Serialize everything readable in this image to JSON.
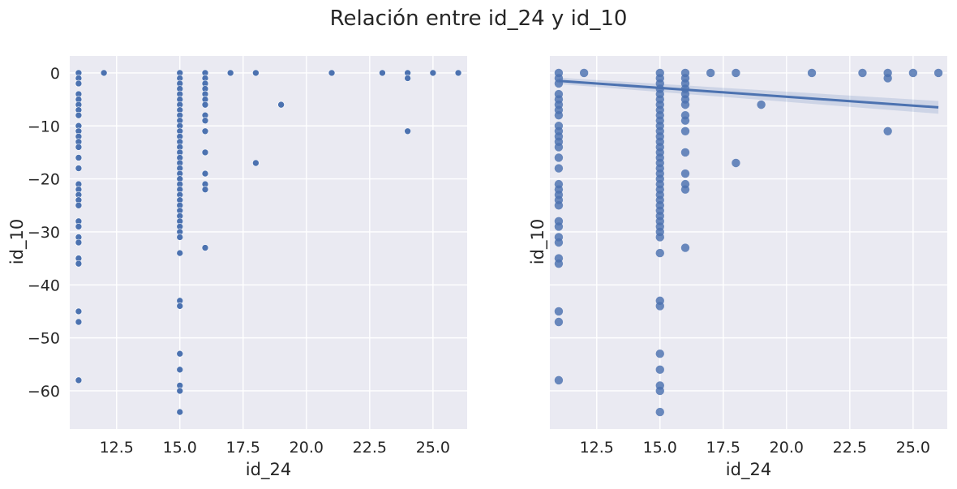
{
  "figure": {
    "title": "Relación entre id_24 y id_10"
  },
  "colors": {
    "background": "#eaeaf2",
    "grid": "#ffffff",
    "points": "#4c72b0",
    "regression_band": "#4c72b0"
  },
  "chart_data": [
    {
      "type": "scatter",
      "title": "",
      "xlabel": "id_24",
      "ylabel": "id_10",
      "xlim": [
        10.65,
        26.35
      ],
      "ylim": [
        -67.2,
        3.2
      ],
      "xticks": [
        12.5,
        15.0,
        17.5,
        20.0,
        22.5,
        25.0
      ],
      "yticks": [
        0,
        -10,
        -20,
        -30,
        -40,
        -50,
        -60
      ],
      "xtick_labels": [
        "12.5",
        "15.0",
        "17.5",
        "20.0",
        "22.5",
        "25.0"
      ],
      "ytick_labels": [
        "0",
        "−10",
        "−20",
        "−30",
        "−40",
        "−50",
        "−60"
      ],
      "grid": true,
      "series": [
        {
          "points": [
            [
              11,
              0
            ],
            [
              11,
              -1
            ],
            [
              11,
              -2
            ],
            [
              11,
              -4
            ],
            [
              11,
              -5
            ],
            [
              11,
              -6
            ],
            [
              11,
              -7
            ],
            [
              11,
              -8
            ],
            [
              11,
              -10
            ],
            [
              11,
              -11
            ],
            [
              11,
              -12
            ],
            [
              11,
              -13
            ],
            [
              11,
              -14
            ],
            [
              11,
              -16
            ],
            [
              11,
              -18
            ],
            [
              11,
              -21
            ],
            [
              11,
              -22
            ],
            [
              11,
              -23
            ],
            [
              11,
              -24
            ],
            [
              11,
              -25
            ],
            [
              11,
              -28
            ],
            [
              11,
              -29
            ],
            [
              11,
              -31
            ],
            [
              11,
              -32
            ],
            [
              11,
              -35
            ],
            [
              11,
              -36
            ],
            [
              11,
              -45
            ],
            [
              11,
              -47
            ],
            [
              11,
              -58
            ],
            [
              12,
              0
            ],
            [
              15,
              0
            ],
            [
              15,
              -1
            ],
            [
              15,
              -2
            ],
            [
              15,
              -3
            ],
            [
              15,
              -4
            ],
            [
              15,
              -5
            ],
            [
              15,
              -6
            ],
            [
              15,
              -7
            ],
            [
              15,
              -8
            ],
            [
              15,
              -9
            ],
            [
              15,
              -10
            ],
            [
              15,
              -11
            ],
            [
              15,
              -12
            ],
            [
              15,
              -13
            ],
            [
              15,
              -14
            ],
            [
              15,
              -15
            ],
            [
              15,
              -16
            ],
            [
              15,
              -17
            ],
            [
              15,
              -18
            ],
            [
              15,
              -19
            ],
            [
              15,
              -20
            ],
            [
              15,
              -21
            ],
            [
              15,
              -22
            ],
            [
              15,
              -23
            ],
            [
              15,
              -24
            ],
            [
              15,
              -25
            ],
            [
              15,
              -26
            ],
            [
              15,
              -27
            ],
            [
              15,
              -28
            ],
            [
              15,
              -29
            ],
            [
              15,
              -30
            ],
            [
              15,
              -31
            ],
            [
              15,
              -34
            ],
            [
              15,
              -43
            ],
            [
              15,
              -44
            ],
            [
              15,
              -53
            ],
            [
              15,
              -56
            ],
            [
              15,
              -59
            ],
            [
              15,
              -60
            ],
            [
              15,
              -64
            ],
            [
              16,
              0
            ],
            [
              16,
              -1
            ],
            [
              16,
              -2
            ],
            [
              16,
              -3
            ],
            [
              16,
              -4
            ],
            [
              16,
              -5
            ],
            [
              16,
              -6
            ],
            [
              16,
              -8
            ],
            [
              16,
              -9
            ],
            [
              16,
              -11
            ],
            [
              16,
              -15
            ],
            [
              16,
              -19
            ],
            [
              16,
              -21
            ],
            [
              16,
              -22
            ],
            [
              16,
              -33
            ],
            [
              17,
              0
            ],
            [
              18,
              0
            ],
            [
              18,
              -17
            ],
            [
              19,
              -6
            ],
            [
              21,
              0
            ],
            [
              23,
              0
            ],
            [
              24,
              0
            ],
            [
              24,
              -1
            ],
            [
              24,
              -11
            ],
            [
              25,
              0
            ],
            [
              26,
              0
            ]
          ]
        }
      ]
    },
    {
      "type": "scatter",
      "title": "",
      "xlabel": "id_24",
      "ylabel": "id_10",
      "xlim": [
        10.65,
        26.35
      ],
      "ylim": [
        -67.2,
        3.2
      ],
      "xticks": [
        12.5,
        15.0,
        17.5,
        20.0,
        22.5,
        25.0
      ],
      "yticks": [
        0,
        -10,
        -20,
        -30,
        -40,
        -50,
        -60
      ],
      "xtick_labels": [
        "12.5",
        "15.0",
        "17.5",
        "20.0",
        "22.5",
        "25.0"
      ],
      "grid": true,
      "regression": {
        "x": [
          11,
          26
        ],
        "y": [
          -1.5,
          -6.5
        ],
        "ci_upper": [
          -0.9,
          -5.3
        ],
        "ci_lower": [
          -2.1,
          -7.7
        ]
      },
      "series": [
        {
          "points": [
            [
              11,
              0
            ],
            [
              11,
              -1
            ],
            [
              11,
              -2
            ],
            [
              11,
              -4
            ],
            [
              11,
              -5
            ],
            [
              11,
              -6
            ],
            [
              11,
              -7
            ],
            [
              11,
              -8
            ],
            [
              11,
              -10
            ],
            [
              11,
              -11
            ],
            [
              11,
              -12
            ],
            [
              11,
              -13
            ],
            [
              11,
              -14
            ],
            [
              11,
              -16
            ],
            [
              11,
              -18
            ],
            [
              11,
              -21
            ],
            [
              11,
              -22
            ],
            [
              11,
              -23
            ],
            [
              11,
              -24
            ],
            [
              11,
              -25
            ],
            [
              11,
              -28
            ],
            [
              11,
              -29
            ],
            [
              11,
              -31
            ],
            [
              11,
              -32
            ],
            [
              11,
              -35
            ],
            [
              11,
              -36
            ],
            [
              11,
              -45
            ],
            [
              11,
              -47
            ],
            [
              11,
              -58
            ],
            [
              12,
              0
            ],
            [
              15,
              0
            ],
            [
              15,
              -1
            ],
            [
              15,
              -2
            ],
            [
              15,
              -3
            ],
            [
              15,
              -4
            ],
            [
              15,
              -5
            ],
            [
              15,
              -6
            ],
            [
              15,
              -7
            ],
            [
              15,
              -8
            ],
            [
              15,
              -9
            ],
            [
              15,
              -10
            ],
            [
              15,
              -11
            ],
            [
              15,
              -12
            ],
            [
              15,
              -13
            ],
            [
              15,
              -14
            ],
            [
              15,
              -15
            ],
            [
              15,
              -16
            ],
            [
              15,
              -17
            ],
            [
              15,
              -18
            ],
            [
              15,
              -19
            ],
            [
              15,
              -20
            ],
            [
              15,
              -21
            ],
            [
              15,
              -22
            ],
            [
              15,
              -23
            ],
            [
              15,
              -24
            ],
            [
              15,
              -25
            ],
            [
              15,
              -26
            ],
            [
              15,
              -27
            ],
            [
              15,
              -28
            ],
            [
              15,
              -29
            ],
            [
              15,
              -30
            ],
            [
              15,
              -31
            ],
            [
              15,
              -34
            ],
            [
              15,
              -43
            ],
            [
              15,
              -44
            ],
            [
              15,
              -53
            ],
            [
              15,
              -56
            ],
            [
              15,
              -59
            ],
            [
              15,
              -60
            ],
            [
              15,
              -64
            ],
            [
              16,
              0
            ],
            [
              16,
              -1
            ],
            [
              16,
              -2
            ],
            [
              16,
              -3
            ],
            [
              16,
              -4
            ],
            [
              16,
              -5
            ],
            [
              16,
              -6
            ],
            [
              16,
              -8
            ],
            [
              16,
              -9
            ],
            [
              16,
              -11
            ],
            [
              16,
              -15
            ],
            [
              16,
              -19
            ],
            [
              16,
              -21
            ],
            [
              16,
              -22
            ],
            [
              16,
              -33
            ],
            [
              17,
              0
            ],
            [
              18,
              0
            ],
            [
              18,
              -17
            ],
            [
              19,
              -6
            ],
            [
              21,
              0
            ],
            [
              23,
              0
            ],
            [
              24,
              0
            ],
            [
              24,
              -1
            ],
            [
              24,
              -11
            ],
            [
              25,
              0
            ],
            [
              26,
              0
            ]
          ]
        }
      ]
    }
  ]
}
